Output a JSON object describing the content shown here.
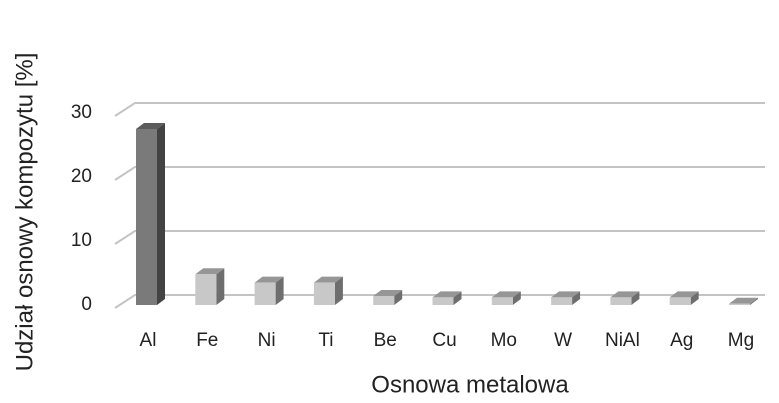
{
  "chart_data": {
    "type": "bar3d",
    "x_label": "Osnowa metalowa",
    "y_label": "Udział osnowy kompozytu [%]",
    "categories": [
      "Al",
      "Fe",
      "Ni",
      "Ti",
      "Be",
      "Cu",
      "Mo",
      "W",
      "NiAl",
      "Ag",
      "Mg"
    ],
    "values": [
      27.5,
      4.8,
      3.5,
      3.5,
      1.4,
      1.2,
      1.2,
      1.2,
      1.2,
      1.2,
      0.2
    ],
    "colors": [
      "#7a7a7a",
      "#c8c8c8",
      "#c8c8c8",
      "#c8c8c8",
      "#c8c8c8",
      "#c8c8c8",
      "#c8c8c8",
      "#c8c8c8",
      "#c8c8c8",
      "#c8c8c8",
      "#c8c8c8"
    ],
    "ylim": [
      0,
      30
    ],
    "yticks": [
      0,
      10,
      20,
      30
    ],
    "grid": true
  }
}
